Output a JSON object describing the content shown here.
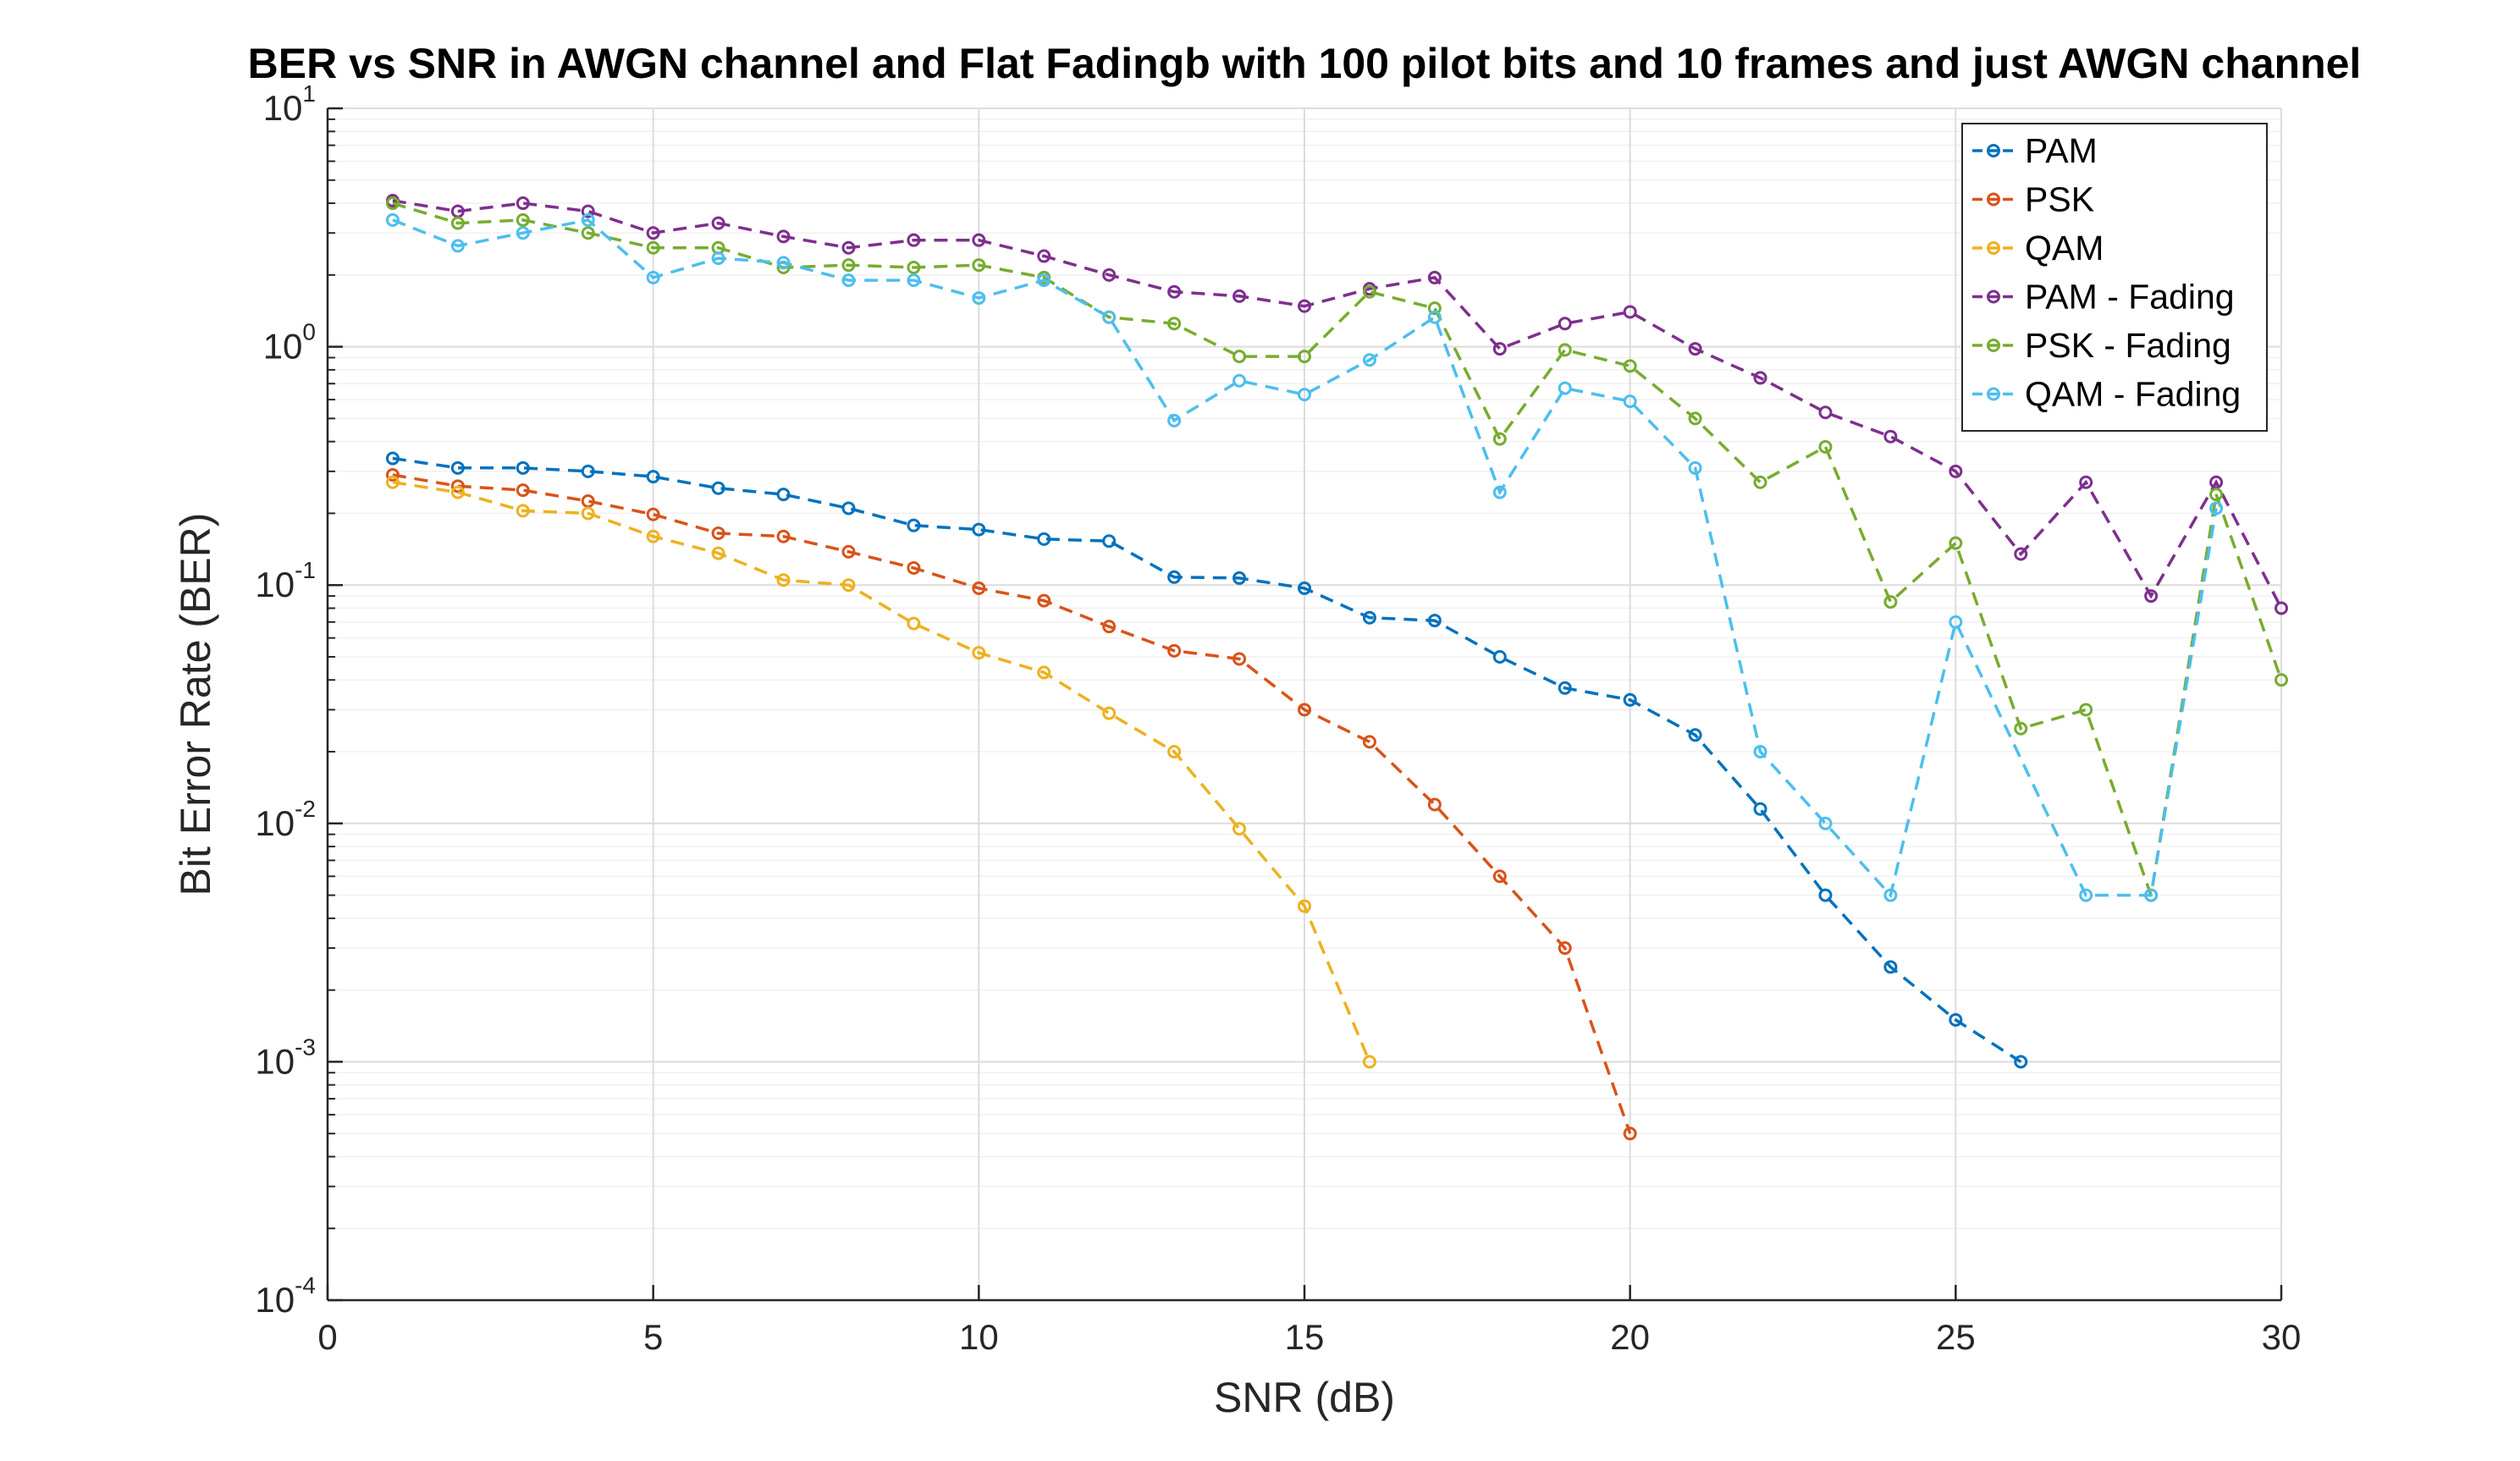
{
  "chart_data": {
    "type": "line",
    "title": "BER vs SNR in AWGN channel and Flat Fadingb with 100 pilot bits and 10 frames and just AWGN channel",
    "xlabel": "SNR (dB)",
    "ylabel": "Bit Error Rate (BER)",
    "xlim": [
      0,
      30
    ],
    "ylim": [
      0.0001,
      10
    ],
    "yscale": "log",
    "xticks": [
      0,
      5,
      10,
      15,
      20,
      25,
      30
    ],
    "xtick_labels": [
      "0",
      "5",
      "10",
      "15",
      "20",
      "25",
      "30"
    ],
    "yticks": [
      {
        "value": 10,
        "base": "10",
        "exp": "1"
      },
      {
        "value": 1,
        "base": "10",
        "exp": "0"
      },
      {
        "value": 0.1,
        "base": "10",
        "exp": "-1"
      },
      {
        "value": 0.01,
        "base": "10",
        "exp": "-2"
      },
      {
        "value": 0.001,
        "base": "10",
        "exp": "-3"
      },
      {
        "value": 0.0001,
        "base": "10",
        "exp": "-4"
      }
    ],
    "grid": true,
    "legend_position": "top-right",
    "line_style": "dashed",
    "marker": "circle",
    "series": [
      {
        "name": "PAM",
        "color": "#0072BD",
        "x": [
          1,
          2,
          3,
          4,
          5,
          6,
          7,
          8,
          9,
          10,
          11,
          12,
          13,
          14,
          15,
          16,
          17,
          18,
          19,
          20,
          21,
          22,
          23,
          24,
          25,
          26
        ],
        "y": [
          0.34,
          0.31,
          0.31,
          0.3,
          0.285,
          0.255,
          0.24,
          0.21,
          0.178,
          0.171,
          0.156,
          0.153,
          0.108,
          0.107,
          0.097,
          0.073,
          0.071,
          0.05,
          0.037,
          0.033,
          0.0235,
          0.0115,
          0.005,
          0.0025,
          0.0015,
          0.001
        ]
      },
      {
        "name": "PSK",
        "color": "#D95319",
        "x": [
          1,
          2,
          3,
          4,
          5,
          6,
          7,
          8,
          9,
          10,
          11,
          12,
          13,
          14,
          15,
          16,
          17,
          18,
          19,
          20
        ],
        "y": [
          0.29,
          0.26,
          0.25,
          0.225,
          0.198,
          0.165,
          0.16,
          0.138,
          0.118,
          0.097,
          0.086,
          0.067,
          0.053,
          0.049,
          0.03,
          0.022,
          0.012,
          0.006,
          0.003,
          0.0005
        ]
      },
      {
        "name": "QAM",
        "color": "#EDB120",
        "x": [
          1,
          2,
          3,
          4,
          5,
          6,
          7,
          8,
          9,
          10,
          11,
          12,
          13,
          14,
          15,
          16
        ],
        "y": [
          0.27,
          0.245,
          0.205,
          0.2,
          0.16,
          0.136,
          0.105,
          0.1,
          0.069,
          0.052,
          0.043,
          0.029,
          0.02,
          0.0095,
          0.0045,
          0.001
        ]
      },
      {
        "name": "PAM - Fading",
        "color": "#7E2F8E",
        "x": [
          1,
          2,
          3,
          4,
          5,
          6,
          7,
          8,
          9,
          10,
          11,
          12,
          13,
          14,
          15,
          16,
          17,
          18,
          19,
          20,
          21,
          22,
          23,
          24,
          25,
          26,
          27,
          28,
          29,
          30
        ],
        "y": [
          4.1,
          3.7,
          4.0,
          3.7,
          3.0,
          3.3,
          2.9,
          2.6,
          2.8,
          2.8,
          2.4,
          2.0,
          1.7,
          1.63,
          1.48,
          1.75,
          1.95,
          0.98,
          1.25,
          1.4,
          0.98,
          0.74,
          0.53,
          0.42,
          0.3,
          0.135,
          0.27,
          0.09,
          0.27,
          0.08
        ]
      },
      {
        "name": "PSK - Fading",
        "color": "#77AC30",
        "x": [
          1,
          2,
          3,
          4,
          5,
          6,
          7,
          8,
          9,
          10,
          11,
          12,
          13,
          14,
          15,
          16,
          17,
          18,
          19,
          20,
          21,
          22,
          23,
          24,
          25,
          26,
          27,
          28,
          29,
          30
        ],
        "y": [
          4.0,
          3.3,
          3.4,
          3.0,
          2.6,
          2.6,
          2.15,
          2.2,
          2.15,
          2.2,
          1.95,
          1.33,
          1.25,
          0.91,
          0.91,
          1.7,
          1.45,
          0.41,
          0.97,
          0.83,
          0.5,
          0.27,
          0.38,
          0.085,
          0.15,
          0.025,
          0.03,
          0.005,
          0.24,
          0.04
        ]
      },
      {
        "name": "QAM - Fading",
        "color": "#4DBEEE",
        "x": [
          1,
          2,
          3,
          4,
          5,
          6,
          7,
          8,
          9,
          10,
          11,
          12,
          13,
          14,
          15,
          16,
          17,
          18,
          19,
          20,
          21,
          22,
          23,
          24,
          25,
          27,
          28,
          29
        ],
        "y": [
          3.4,
          2.65,
          3.0,
          3.4,
          1.95,
          2.35,
          2.25,
          1.9,
          1.9,
          1.6,
          1.9,
          1.33,
          0.49,
          0.72,
          0.63,
          0.88,
          1.33,
          0.245,
          0.67,
          0.59,
          0.31,
          0.02,
          0.01,
          0.005,
          0.07,
          0.005,
          0.005,
          0.21
        ]
      }
    ]
  }
}
